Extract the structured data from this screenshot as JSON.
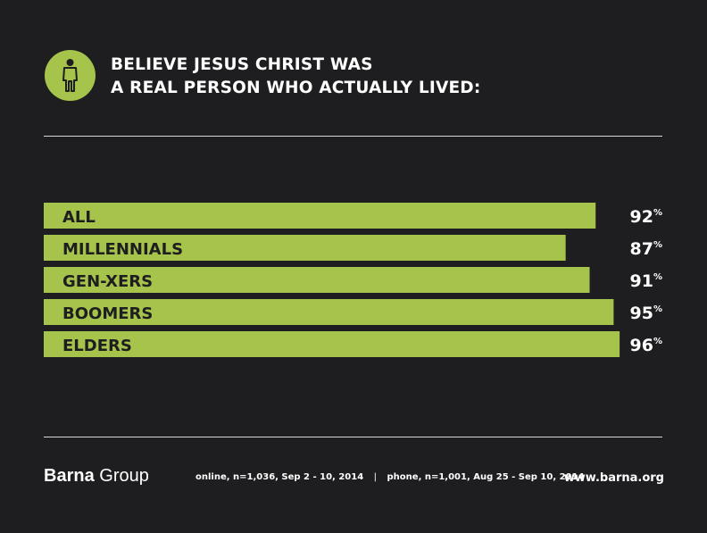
{
  "title": {
    "line1": "BELIEVE JESUS CHRIST WAS",
    "line2": "A REAL PERSON WHO ACTUALLY LIVED:"
  },
  "header_icon": "person-icon",
  "colors": {
    "background": "#1e1e20",
    "bar": "#a6c34b",
    "bar_label": "#1e1e20",
    "value_label": "#ffffff",
    "rule": "#d8d8d8"
  },
  "chart_data": {
    "type": "bar",
    "orientation": "horizontal",
    "categories": [
      "ALL",
      "MILLENNIALS",
      "GEN-XERS",
      "BOOMERS",
      "ELDERS"
    ],
    "values": [
      92,
      87,
      91,
      95,
      96
    ],
    "value_suffix": "%",
    "title": "BELIEVE JESUS CHRIST WAS A REAL PERSON WHO ACTUALLY LIVED:",
    "xlabel": "",
    "ylabel": "",
    "xlim": [
      0,
      100
    ],
    "grid": false,
    "legend": "none"
  },
  "footer": {
    "brand_bold": "Barna",
    "brand_regular": "Group",
    "source_left": "online, n=1,036, Sep 2 - 10, 2014",
    "separator": "|",
    "source_right": "phone, n=1,001, Aug 25 - Sep 10, 2014",
    "url": "www.barna.org"
  }
}
